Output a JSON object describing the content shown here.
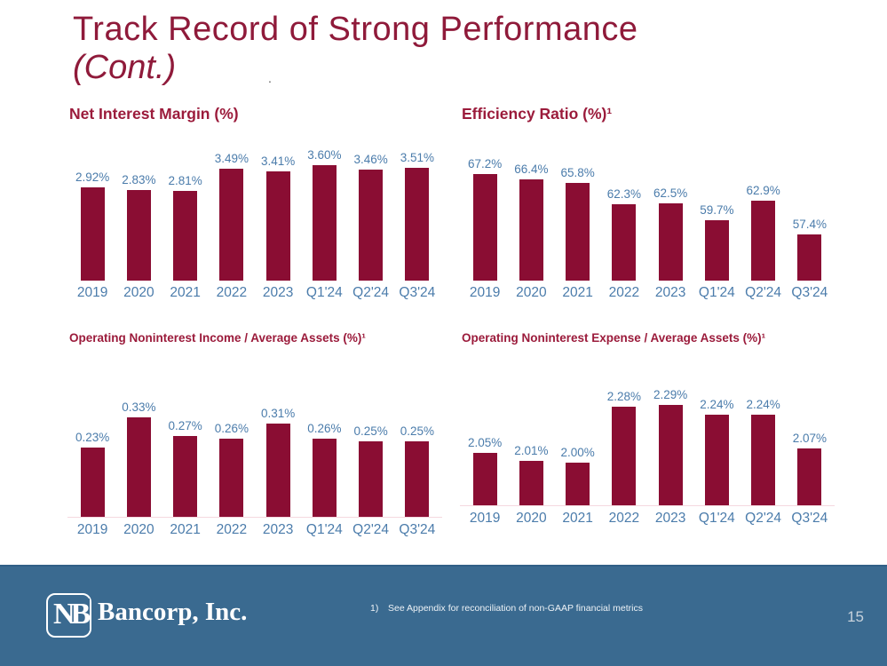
{
  "slide": {
    "title_line1": "Track Record of Strong Performance",
    "title_line2": "(Cont.)",
    "stray_mark": ".",
    "page_number": "15"
  },
  "footer": {
    "logo_mark": "NB",
    "logo_text": "Bancorp, Inc.",
    "footnote_marker": "1)",
    "footnote_text": "See Appendix for reconciliation of non-GAAP financial metrics"
  },
  "colors": {
    "bar_maroon": "#8A0D33",
    "title_red": "#8F1A3A",
    "chart_title_red": "#9B1B3B",
    "label_blue": "#4B7CAB",
    "footer_blue": "#3A6A90",
    "axis_pink": "#F5D8DF",
    "footnote_color": "#EDF2F6",
    "page_number_color": "#C7D2DC"
  },
  "chart_data": [
    {
      "type": "bar",
      "title": "Net Interest Margin (%)",
      "categories": [
        "2019",
        "2020",
        "2021",
        "2022",
        "2023",
        "Q1'24",
        "Q2'24",
        "Q3'24"
      ],
      "values": [
        2.92,
        2.83,
        2.81,
        3.49,
        3.41,
        3.6,
        3.46,
        3.51
      ],
      "labels": [
        "2.92%",
        "2.83%",
        "2.81%",
        "3.49%",
        "3.41%",
        "3.60%",
        "3.46%",
        "3.51%"
      ],
      "ylim": [
        0,
        3.6
      ],
      "grid": false,
      "axis_line": false,
      "legend": "none"
    },
    {
      "type": "bar",
      "title": "Efficiency Ratio (%)¹",
      "categories": [
        "2019",
        "2020",
        "2021",
        "2022",
        "2023",
        "Q1'24",
        "Q2'24",
        "Q3'24"
      ],
      "values": [
        67.2,
        66.4,
        65.8,
        62.3,
        62.5,
        59.7,
        62.9,
        57.4
      ],
      "labels": [
        "67.2%",
        "66.4%",
        "65.8%",
        "62.3%",
        "62.5%",
        "59.7%",
        "62.9%",
        "57.4%"
      ],
      "ylim": [
        50,
        67.2
      ],
      "grid": false,
      "axis_line": false,
      "legend": "none"
    },
    {
      "type": "bar",
      "title": "Operating Noninterest Income / Average Assets (%)¹",
      "categories": [
        "2019",
        "2020",
        "2021",
        "2022",
        "2023",
        "Q1'24",
        "Q2'24",
        "Q3'24"
      ],
      "values": [
        0.23,
        0.33,
        0.27,
        0.26,
        0.31,
        0.26,
        0.25,
        0.25
      ],
      "labels": [
        "0.23%",
        "0.33%",
        "0.27%",
        "0.26%",
        "0.31%",
        "0.26%",
        "0.25%",
        "0.25%"
      ],
      "ylim": [
        0,
        0.33
      ],
      "grid": false,
      "axis_line": true,
      "legend": "none"
    },
    {
      "type": "bar",
      "title": "Operating Noninterest Expense / Average Assets (%)¹",
      "categories": [
        "2019",
        "2020",
        "2021",
        "2022",
        "2023",
        "Q1'24",
        "Q2'24",
        "Q3'24"
      ],
      "values": [
        2.05,
        2.01,
        2.0,
        2.28,
        2.29,
        2.24,
        2.24,
        2.07
      ],
      "labels": [
        "2.05%",
        "2.01%",
        "2.00%",
        "2.28%",
        "2.29%",
        "2.24%",
        "2.24%",
        "2.07%"
      ],
      "ylim": [
        1.78,
        2.29
      ],
      "grid": false,
      "axis_line": true,
      "legend": "none"
    }
  ]
}
